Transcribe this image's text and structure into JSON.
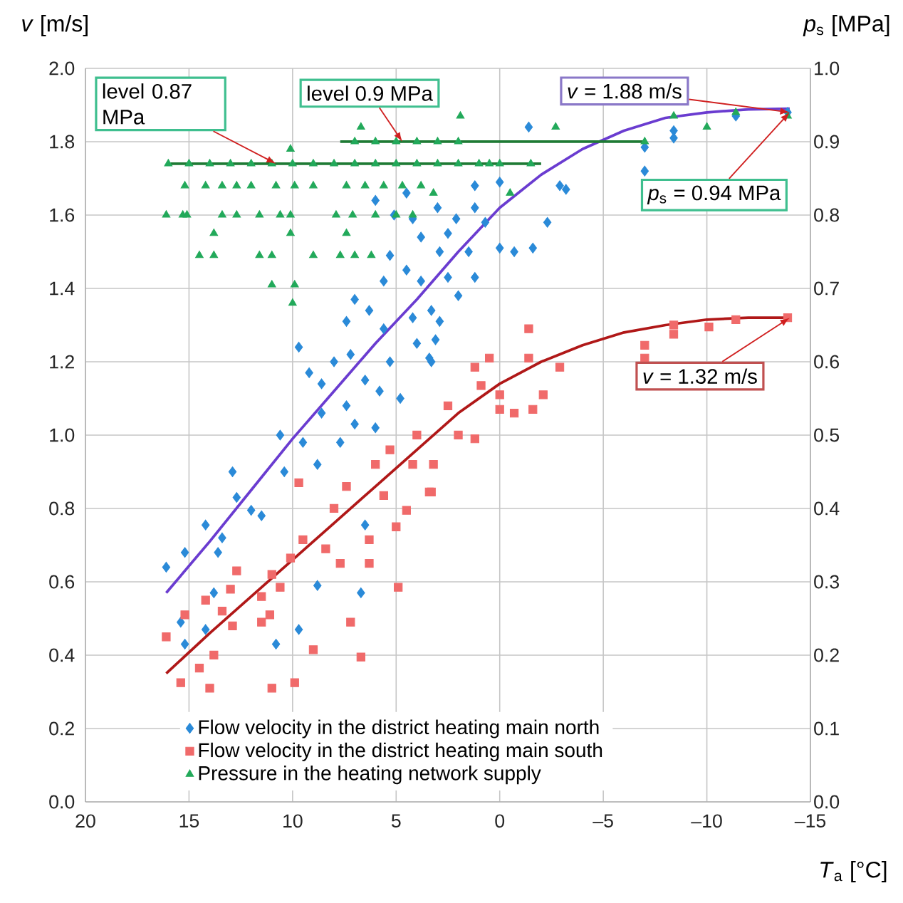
{
  "chart_data": {
    "type": "scatter",
    "xlabel": "*T*$_{a}$ [°C]",
    "ylabel": "*v* [m/s]",
    "y2label": "*p*$_{s}$ [MPa]",
    "xlim": [
      20,
      -15
    ],
    "xticks": [
      20,
      15,
      10,
      5,
      0,
      {
        "value": -5,
        "label": "–5"
      },
      {
        "value": -10,
        "label": "–10"
      },
      {
        "value": -15,
        "label": "–15"
      }
    ],
    "ylim": [
      0,
      2
    ],
    "yticks": [
      {
        "value": 0,
        "label": "0.0"
      },
      0.2,
      0.4,
      0.6,
      0.8,
      {
        "value": 1,
        "label": "1.0"
      },
      1.2,
      1.4,
      1.6,
      1.8,
      {
        "value": 2,
        "label": "2.0"
      }
    ],
    "y2lim": [
      0,
      1
    ],
    "y2ticks": [
      {
        "value": 0,
        "label": "0.0"
      },
      0.1,
      0.2,
      0.3,
      0.4,
      0.5,
      0.6,
      0.7,
      0.8,
      0.9,
      {
        "value": 1,
        "label": "1.0"
      }
    ],
    "grid": true,
    "legend": "bottom left",
    "series": [
      {
        "name": "Flow velocity in the district heating main north",
        "color": "#2a8ad8",
        "marker": "diamond",
        "x": [
          6.0,
          5.1,
          4.2,
          3.8,
          5.3,
          4.5,
          5.6,
          7.0,
          6.3,
          7.4,
          5.6,
          4.2,
          3.3,
          9.7,
          7.2,
          5.3,
          3.3,
          9.2,
          6.5,
          8.6,
          7.4,
          3.1,
          3.8,
          16.1,
          15.2,
          14.2,
          13.4,
          12.9,
          12.7,
          12.0,
          11.5,
          10.6,
          10.4,
          9.5,
          8.6,
          8.8,
          7.7,
          7.0,
          6.0,
          13.6,
          15.4,
          14.2,
          13.8,
          10.8,
          9.7,
          6.7,
          6.5,
          15.2,
          8.8,
          -1.4,
          -7.0,
          -7.0,
          -8.4,
          -8.4,
          -2.9,
          -3.2,
          -2.3,
          -1.6,
          -0.7,
          0,
          0.7,
          1.2,
          2.1,
          2.5,
          2.9,
          1.2,
          0,
          1.2,
          2.5,
          2.9,
          3.4,
          -11.4,
          -13.9,
          4.8,
          5.8,
          8.0,
          4.0,
          2.0,
          1.5,
          3.0,
          4.5
        ],
        "values": [
          1.64,
          1.6,
          1.59,
          1.54,
          1.49,
          1.45,
          1.42,
          1.37,
          1.34,
          1.31,
          1.29,
          1.32,
          1.34,
          1.24,
          1.22,
          1.2,
          1.2,
          1.17,
          1.15,
          1.14,
          1.08,
          1.26,
          1.42,
          0.64,
          0.68,
          0.755,
          0.72,
          0.9,
          0.83,
          0.795,
          0.78,
          1.0,
          0.9,
          0.98,
          1.06,
          0.92,
          0.98,
          1.03,
          1.02,
          0.68,
          0.49,
          0.47,
          0.57,
          0.43,
          0.47,
          0.57,
          0.755,
          0.43,
          0.59,
          1.84,
          1.785,
          1.72,
          1.83,
          1.81,
          1.68,
          1.67,
          1.58,
          1.51,
          1.5,
          1.51,
          1.58,
          1.62,
          1.59,
          1.55,
          1.5,
          1.68,
          1.69,
          1.43,
          1.43,
          1.31,
          1.21,
          1.87,
          1.88,
          1.1,
          1.12,
          1.2,
          1.25,
          1.38,
          1.5,
          1.62,
          1.66
        ]
      },
      {
        "name": "Flow velocity in the district heating main south",
        "color": "#f06a6a",
        "marker": "square",
        "x": [
          16.1,
          15.4,
          15.2,
          14.5,
          14.0,
          13.8,
          14.2,
          13.4,
          12.7,
          11.5,
          11.1,
          11.0,
          9.9,
          10.1,
          9.7,
          9.0,
          8.4,
          7.7,
          7.2,
          6.7,
          7.4,
          6.3,
          6.3,
          4.9,
          5.6,
          4.5,
          5.3,
          4.2,
          3.3,
          9.5,
          10.6,
          11.5,
          12.9,
          3.4,
          3.2,
          2.5,
          1.2,
          0.9,
          0,
          0,
          -0.7,
          -1.4,
          -1.4,
          0.5,
          -2.1,
          -2.9,
          -1.6,
          1.2,
          -7.0,
          -7.0,
          -8.4,
          -8.4,
          -10.1,
          -11.4,
          -13.9,
          6,
          4,
          2,
          5,
          8,
          11,
          13
        ],
        "values": [
          0.45,
          0.325,
          0.51,
          0.365,
          0.31,
          0.4,
          0.55,
          0.52,
          0.63,
          0.56,
          0.51,
          0.31,
          0.325,
          0.665,
          0.87,
          0.415,
          0.69,
          0.65,
          0.49,
          0.395,
          0.86,
          0.715,
          0.65,
          0.585,
          0.835,
          0.795,
          0.96,
          0.92,
          0.845,
          0.715,
          0.585,
          0.49,
          0.48,
          0.845,
          0.92,
          1.08,
          0.99,
          1.135,
          1.11,
          1.07,
          1.06,
          1.29,
          1.21,
          1.21,
          1.11,
          1.185,
          1.07,
          1.185,
          1.245,
          1.21,
          1.3,
          1.275,
          1.295,
          1.315,
          1.32,
          0.92,
          1.0,
          1.0,
          0.75,
          0.8,
          0.62,
          0.58
        ]
      },
      {
        "name": "Pressure in the heating network supply",
        "color": "#22a95a",
        "marker": "triangle",
        "axis": "y2",
        "x": [
          16.1,
          15.3,
          15.1,
          13.4,
          12.7,
          11.6,
          10.6,
          10.1,
          7.9,
          7.1,
          6.0,
          5.0,
          4.2,
          13.8,
          10.1,
          7.4,
          14.5,
          13.8,
          11.6,
          11.0,
          9.0,
          7.7,
          7.0,
          6.2,
          11.0,
          9.9,
          10.0,
          15.2,
          14.2,
          13.4,
          12.7,
          12.0,
          10.8,
          9.9,
          9.0,
          7.4,
          6.5,
          5.6,
          4.7,
          3.8,
          16,
          15,
          14,
          13,
          12,
          11,
          10,
          9,
          8,
          7,
          6,
          5,
          4,
          3,
          2,
          1,
          0.5,
          0,
          7,
          6,
          5,
          4,
          3,
          2,
          10.1,
          6.7,
          1.9,
          -2.7,
          -1.5,
          -7.0,
          -8.4,
          -10,
          -11.4,
          -13.9,
          3.2,
          -0.5
        ],
        "values": [
          0.8,
          0.8,
          0.8,
          0.8,
          0.8,
          0.8,
          0.8,
          0.8,
          0.8,
          0.8,
          0.8,
          0.8,
          0.8,
          0.775,
          0.775,
          0.775,
          0.745,
          0.745,
          0.745,
          0.745,
          0.745,
          0.745,
          0.745,
          0.745,
          0.705,
          0.705,
          0.68,
          0.84,
          0.84,
          0.84,
          0.84,
          0.84,
          0.84,
          0.84,
          0.84,
          0.84,
          0.84,
          0.84,
          0.84,
          0.84,
          0.87,
          0.87,
          0.87,
          0.87,
          0.87,
          0.87,
          0.87,
          0.87,
          0.87,
          0.87,
          0.87,
          0.87,
          0.87,
          0.87,
          0.87,
          0.87,
          0.87,
          0.87,
          0.9,
          0.9,
          0.9,
          0.9,
          0.9,
          0.9,
          0.89,
          0.92,
          0.935,
          0.92,
          0.87,
          0.9,
          0.935,
          0.92,
          0.94,
          0.935,
          0.83,
          0.83
        ]
      },
      {
        "type": "line",
        "color": "#6a3cd0",
        "marker": "none",
        "x": [
          16.1,
          14,
          12,
          10,
          8,
          6,
          4,
          2,
          0,
          -2,
          -4,
          -6,
          -8,
          -10,
          -12,
          -14
        ],
        "values": [
          0.57,
          0.71,
          0.85,
          0.99,
          1.12,
          1.25,
          1.37,
          1.5,
          1.62,
          1.71,
          1.78,
          1.83,
          1.865,
          1.88,
          1.888,
          1.89
        ]
      },
      {
        "type": "line",
        "color": "#b01818",
        "marker": "none",
        "x": [
          16.1,
          14,
          12,
          10,
          8,
          6,
          4,
          2,
          0,
          -2,
          -4,
          -6,
          -8,
          -10,
          -12,
          -14
        ],
        "values": [
          0.35,
          0.46,
          0.56,
          0.66,
          0.76,
          0.86,
          0.96,
          1.06,
          1.14,
          1.2,
          1.245,
          1.28,
          1.3,
          1.315,
          1.32,
          1.32
        ]
      },
      {
        "type": "line",
        "color": "#1e7a34",
        "marker": "none",
        "axis": "y2",
        "x": [
          15.9,
          -2
        ],
        "values": [
          0.87,
          0.87
        ]
      },
      {
        "type": "line",
        "color": "#1e7a34",
        "marker": "none",
        "axis": "y2",
        "x": [
          7.7,
          -7
        ],
        "values": [
          0.9,
          0.9
        ]
      }
    ],
    "annotations": [
      {
        "text": "level 0.87 MPa",
        "x": 10.8,
        "y": 1.74
      },
      {
        "text": "level 0.9 MPa",
        "x": 4.7,
        "y": 1.8
      },
      {
        "text": "*v* = 1.88 m/s",
        "x": -14,
        "y": 1.88
      },
      {
        "text": "*p*$_{s}$ = 0.94 MPa",
        "x": -14,
        "y": 1.88
      },
      {
        "text": "*v* = 1.32 m/s",
        "x": -14,
        "y": 1.32
      }
    ]
  }
}
